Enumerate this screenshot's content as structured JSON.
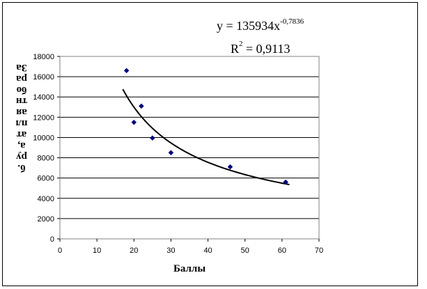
{
  "chart_data": {
    "type": "scatter",
    "title": "",
    "xlabel": "Баллы",
    "ylabel_lines": [
      "За",
      "ра",
      "бо",
      "тн",
      "ая",
      "пл",
      "ат",
      "а,",
      "ру",
      "б."
    ],
    "xlim": [
      0,
      70
    ],
    "ylim": [
      0,
      18000
    ],
    "xticks": [
      0,
      10,
      20,
      30,
      40,
      50,
      60,
      70
    ],
    "yticks": [
      0,
      2000,
      4000,
      6000,
      8000,
      10000,
      12000,
      14000,
      16000,
      18000
    ],
    "grid": "horizontal",
    "legend": "none",
    "points": [
      {
        "x": 18,
        "y": 16600
      },
      {
        "x": 20,
        "y": 11500
      },
      {
        "x": 22,
        "y": 13100
      },
      {
        "x": 25,
        "y": 9950
      },
      {
        "x": 30,
        "y": 8500
      },
      {
        "x": 46,
        "y": 7100
      },
      {
        "x": 61,
        "y": 5600
      }
    ],
    "trendline": {
      "type": "power",
      "coefficient": 135934,
      "exponent": -0.7836,
      "x_range": [
        17,
        62
      ]
    },
    "annotations": {
      "equation_main": "y = 135934x",
      "equation_exponent": "-0,7836",
      "r2_prefix": "R",
      "r2_sup": "2",
      "r2_value": " = 0,9113"
    },
    "colors": {
      "marker": "#000080",
      "trendline": "#000000",
      "grid": "#000000"
    }
  }
}
